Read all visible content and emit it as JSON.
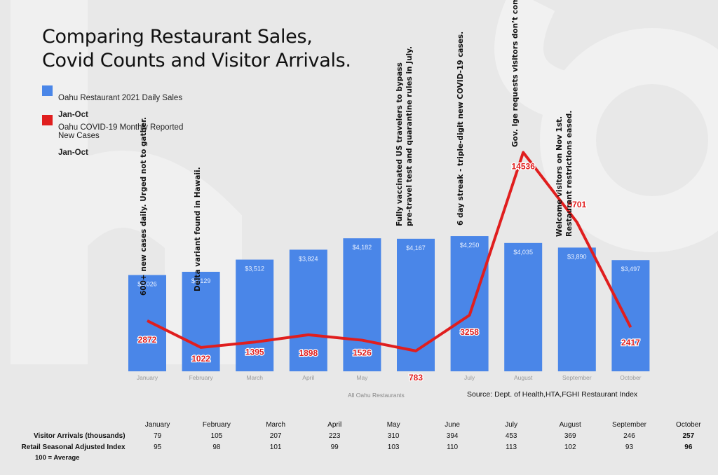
{
  "title_lines": [
    "Comparing Restaurant Sales,",
    "Covid Counts and Visitor Arrivals."
  ],
  "colors": {
    "bar": "#4a86e8",
    "line": "#e01e1e",
    "background": "#e8e8e8"
  },
  "legend": [
    {
      "color": "#4a86e8",
      "line1": "Oahu Restaurant 2021 Daily Sales",
      "line2": "Jan-Oct"
    },
    {
      "color": "#e01e1e",
      "line1": "Oahu COVID-19 Monthly Reported\nNew Cases",
      "line2": "Jan-Oct"
    }
  ],
  "chart_data": {
    "type": "bar",
    "categories": [
      "January",
      "February",
      "March",
      "April",
      "May",
      "June",
      "July",
      "August",
      "September",
      "October"
    ],
    "xlabel": "All Oahu Restaurants",
    "series": [
      {
        "name": "Oahu Restaurant 2021 Daily Sales Jan-Oct",
        "type": "bar",
        "values": [
          3026,
          3129,
          3512,
          3824,
          4182,
          4167,
          4250,
          4035,
          3890,
          3497
        ],
        "labels": [
          "$3,026",
          "$3,129",
          "$3,512",
          "$3,824",
          "$4,182",
          "$4,167",
          "$4,250",
          "$4,035",
          "$3,890",
          "$3,497"
        ]
      },
      {
        "name": "Oahu COVID-19 Monthly Reported New Cases Jan-Oct",
        "type": "line",
        "values": [
          2872,
          1022,
          1395,
          1898,
          1526,
          783,
          3258,
          14536,
          9701,
          2417
        ]
      }
    ],
    "annotations": [
      {
        "month": "January",
        "lines": [
          "600+ new cases daily. Urged not to gather."
        ]
      },
      {
        "month": "February",
        "lines": [
          "Delta variant found in Hawaii."
        ]
      },
      {
        "month": "June",
        "lines": [
          "Fully vaccinated US travelers to bypass",
          "pre-travel test and quarantine rules in July."
        ]
      },
      {
        "month": "July",
        "lines": [
          "6 day streak - triple-digit new COVID-19 cases."
        ]
      },
      {
        "month": "August",
        "lines": [
          "Gov. Ige requests visitors don’t  come."
        ]
      },
      {
        "month": "September",
        "lines": [
          "Welcome visitors on Nov 1st.",
          "Restaurant restrictions eased."
        ]
      }
    ]
  },
  "source": "Source: Dept. of Health,HTA,FGHI Restaurant Index",
  "table": {
    "months": [
      "January",
      "February",
      "March",
      "April",
      "May",
      "June",
      "July",
      "August",
      "September",
      "October"
    ],
    "rows": [
      {
        "label": "Visitor Arrivals (thousands)",
        "values": [
          "79",
          "105",
          "207",
          "223",
          "310",
          "394",
          "453",
          "369",
          "246",
          "257"
        ]
      },
      {
        "label": "Retail Seasonal Adjusted Index",
        "values": [
          "95",
          "98",
          "101",
          "99",
          "103",
          "110",
          "113",
          "102",
          "93",
          "96"
        ]
      }
    ],
    "note": "100 = Average"
  }
}
